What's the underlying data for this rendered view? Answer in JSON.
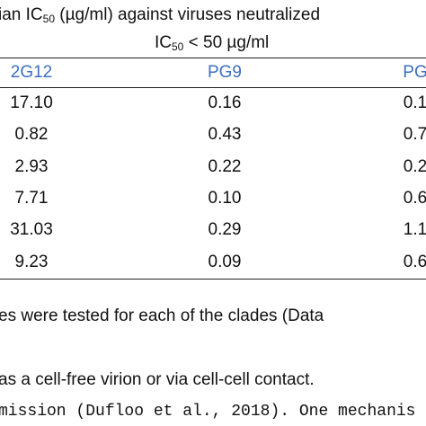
{
  "header": {
    "line1": {
      "pre": "ian IC",
      "sub": "50",
      "post": " (µg/ml) against viruses neutralized"
    },
    "line2": {
      "pre": "IC",
      "sub": "50",
      "post": " < 50 µg/ml"
    }
  },
  "table": {
    "columns": [
      "2G12",
      "PG9",
      "PG"
    ],
    "rows": [
      [
        "17.10",
        "0.16",
        "0.1"
      ],
      [
        "0.82",
        "0.43",
        "0.7"
      ],
      [
        "2.93",
        "0.22",
        "0.2"
      ],
      [
        "7.71",
        "0.10",
        "0.6"
      ],
      [
        "31.03",
        "0.29",
        "1.1"
      ],
      [
        "9.23",
        "0.09",
        "0.6"
      ]
    ]
  },
  "body": {
    "lines": [
      "es were tested for each of the clades (Data",
      "as a cell-free virion or via cell-cell contact.",
      "mission (Dufloo et al., 2018). One mechanis"
    ]
  }
}
